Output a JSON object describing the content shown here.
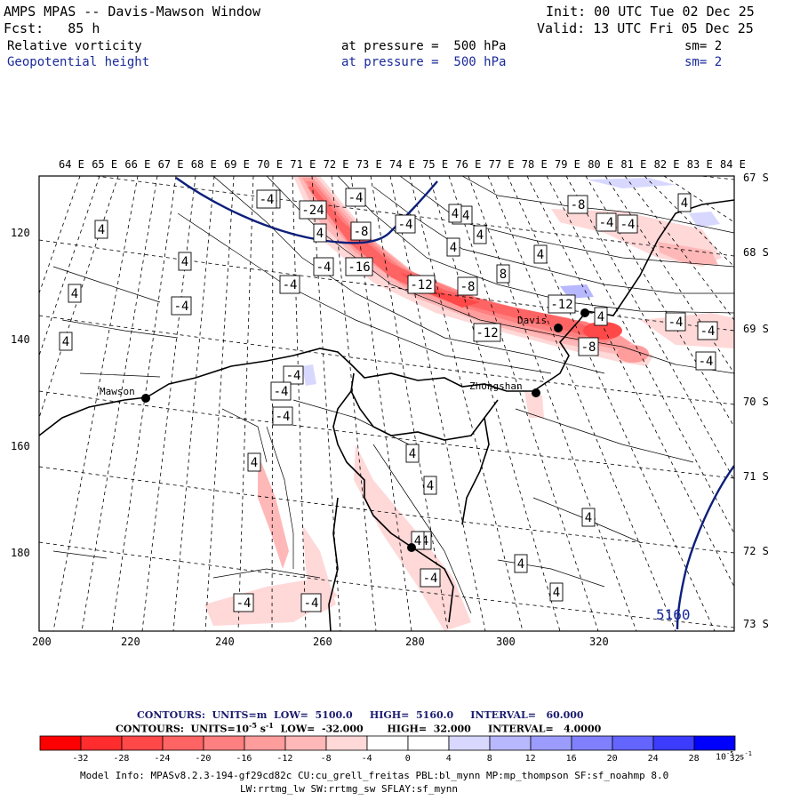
{
  "header": {
    "title": "AMPS MPAS -- Davis-Mawson Window",
    "fcst": "Fcst:   85 h",
    "init": "Init: 00 UTC Tue 02 Dec 25",
    "valid": "Valid: 13 UTC Fri 05 Dec 25",
    "field1": {
      "name": "Relative vorticity",
      "level": "at pressure =  500 hPa",
      "sm": "sm= 2"
    },
    "field2": {
      "name": "Geopotential height",
      "level": "at pressure =  500 hPa",
      "sm": "sm= 2"
    }
  },
  "map": {
    "top_labels": [
      "64 E",
      "65 E",
      "66 E",
      "67 E",
      "68 E",
      "69 E",
      "70 E",
      "71 E",
      "72 E",
      "73 E",
      "74 E",
      "75 E",
      "76 E",
      "77 E",
      "78 E",
      "79 E",
      "80 E",
      "81 E",
      "82 E",
      "83 E",
      "84 E"
    ],
    "right_labels": [
      "67 S",
      "68 S",
      "69 S",
      "70 S",
      "71 S",
      "72 S",
      "73 S"
    ],
    "left_labels": [
      "120",
      "140",
      "160",
      "180"
    ],
    "bottom_labels": [
      "200",
      "220",
      "240",
      "260",
      "280",
      "300",
      "320"
    ],
    "stations": [
      {
        "name": "Mawson"
      },
      {
        "name": "Davis"
      },
      {
        "name": "Zhongshan"
      },
      {
        "name": ""
      },
      {
        "name": ""
      }
    ],
    "height_label": "5160",
    "vort_labels": [
      "-4",
      "-24",
      "-4",
      "-8",
      "4",
      "-16",
      "4",
      "-12",
      "-8",
      "4",
      "-12",
      "-8",
      "-4",
      "8",
      "4",
      "-12",
      "-4",
      "-4",
      "4",
      "4",
      "-4",
      "-4",
      "-4",
      "4",
      "-4",
      "-8",
      "-4",
      "4",
      "-4",
      "4",
      "-4",
      "4",
      "4",
      "4",
      "4",
      "4",
      "-4",
      "-4",
      "-4",
      "4",
      "4",
      "-4",
      "4",
      "4",
      "-4",
      "-4",
      "4",
      "-4"
    ]
  },
  "contours_info": {
    "height": {
      "label": "CONTOURS:  UNITS=m",
      "low": "LOW=  5100.0",
      "high": "HIGH=  5160.0",
      "interval": "INTERVAL=   60.000"
    },
    "vort": {
      "label": "CONTOURS:  UNITS=10",
      "exp": "-5",
      "unit_tail": " s",
      "unit_exp": "-1",
      "low": "LOW=  -32.000",
      "high": "HIGH=  32.000",
      "interval": "INTERVAL=   4.0000"
    }
  },
  "colorbar": {
    "ticks": [
      "-32",
      "-28",
      "-24",
      "-20",
      "-16",
      "-12",
      "-8",
      "-4",
      "0",
      "4",
      "8",
      "12",
      "16",
      "20",
      "24",
      "28",
      "32"
    ],
    "colors": [
      "#ff0000",
      "#ff2d2d",
      "#ff4848",
      "#ff6464",
      "#ff8080",
      "#ff9c9c",
      "#ffb8b8",
      "#ffd8d8",
      "#ffffff",
      "#ffffff",
      "#d8d8ff",
      "#b8b8ff",
      "#9c9cff",
      "#8080ff",
      "#6464ff",
      "#3c3cff",
      "#0000ff"
    ],
    "unit": "10",
    "unit_exp": "-5",
    "unit_tail": " s",
    "unit_tail_exp": "-1"
  },
  "model_info": {
    "line1": "Model Info: MPASv8.2.3-194-gf29cd82c CU:cu_grell_freitas PBL:bl_mynn MP:mp_thompson SF:sf_noahmp 8.0",
    "line2": "LW:rrtmg_lw SW:rrtmg_sw SFLAY:sf_mynn"
  }
}
